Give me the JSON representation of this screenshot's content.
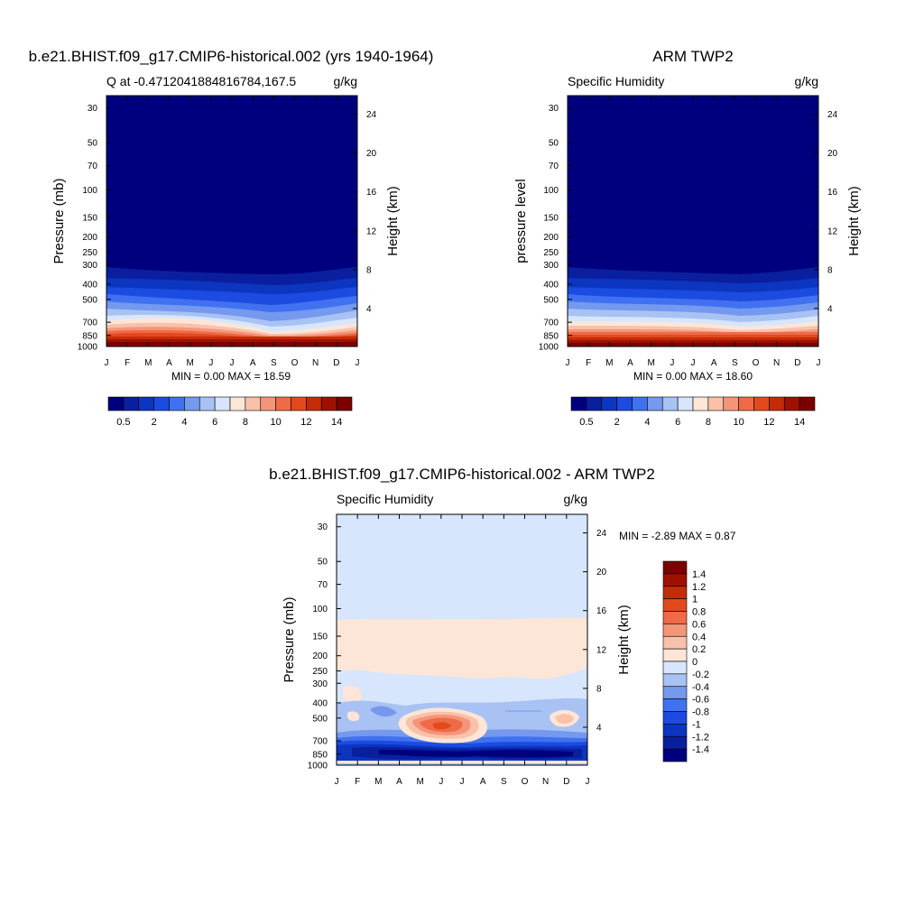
{
  "chart_data": [
    {
      "type": "heatmap",
      "title": "b.e21.BHIST.f09_g17.CMIP6-historical.002 (yrs 1940-1964)",
      "subtitle_left": "Q at -0.4712041884816784,167.5",
      "units": "g/kg",
      "ylabel": "Pressure (mb)",
      "ylabel_right": "Height (km)",
      "x_tick_labels": [
        "J",
        "F",
        "M",
        "A",
        "M",
        "J",
        "J",
        "A",
        "S",
        "O",
        "N",
        "D",
        "J"
      ],
      "y_ticks": [
        30,
        50,
        70,
        100,
        150,
        200,
        250,
        300,
        400,
        500,
        700,
        850,
        1000
      ],
      "y_scale": "log",
      "ylim": [
        1000,
        25
      ],
      "height_ticks_km": [
        24,
        20,
        16,
        12,
        8,
        4
      ],
      "minmax_text": "MIN =   0.00 MAX =   18.59",
      "min": 0.0,
      "max": 18.59,
      "levels": [
        0.5,
        1,
        2,
        3,
        4,
        5,
        6,
        7,
        8,
        9,
        10,
        11,
        12,
        13,
        14
      ],
      "colorbar_labels": [
        "0.5",
        "2",
        "4",
        "6",
        "8",
        "10",
        "12",
        "14"
      ],
      "colorbar_label_levels": [
        0.5,
        2,
        4,
        6,
        8,
        10,
        12,
        14
      ],
      "colorbar_orientation": "horizontal"
    },
    {
      "type": "heatmap",
      "title": "ARM TWP2",
      "subtitle_left": "Specific Humidity",
      "units": "g/kg",
      "ylabel": "pressure level",
      "ylabel_right": "Height (km)",
      "x_tick_labels": [
        "J",
        "F",
        "M",
        "A",
        "M",
        "J",
        "J",
        "A",
        "S",
        "O",
        "N",
        "D",
        "J"
      ],
      "y_ticks": [
        30,
        50,
        70,
        100,
        150,
        200,
        250,
        300,
        400,
        500,
        700,
        850,
        1000
      ],
      "y_scale": "log",
      "ylim": [
        1000,
        25
      ],
      "height_ticks_km": [
        24,
        20,
        16,
        12,
        8,
        4
      ],
      "minmax_text": "MIN =   0.00 MAX =   18.60",
      "min": 0.0,
      "max": 18.6,
      "levels": [
        0.5,
        1,
        2,
        3,
        4,
        5,
        6,
        7,
        8,
        9,
        10,
        11,
        12,
        13,
        14
      ],
      "colorbar_labels": [
        "0.5",
        "2",
        "4",
        "6",
        "8",
        "10",
        "12",
        "14"
      ],
      "colorbar_label_levels": [
        0.5,
        2,
        4,
        6,
        8,
        10,
        12,
        14
      ],
      "colorbar_orientation": "horizontal"
    },
    {
      "type": "heatmap",
      "title": "b.e21.BHIST.f09_g17.CMIP6-historical.002 - ARM TWP2",
      "subtitle_left": "Specific Humidity",
      "units": "g/kg",
      "ylabel": "Pressure (mb)",
      "ylabel_right": "Height (km)",
      "x_tick_labels": [
        "J",
        "F",
        "M",
        "A",
        "M",
        "J",
        "J",
        "A",
        "S",
        "O",
        "N",
        "D",
        "J"
      ],
      "y_ticks": [
        30,
        50,
        70,
        100,
        150,
        200,
        250,
        300,
        400,
        500,
        700,
        850,
        1000
      ],
      "y_scale": "log",
      "ylim": [
        1000,
        25
      ],
      "height_ticks_km": [
        24,
        20,
        16,
        12,
        8,
        4
      ],
      "minmax_text": "MIN =  -2.89 MAX =   0.87",
      "min": -2.89,
      "max": 0.87,
      "levels": [
        -1.4,
        -1.2,
        -1,
        -0.8,
        -0.6,
        -0.4,
        -0.2,
        0,
        0.2,
        0.4,
        0.6,
        0.8,
        1,
        1.2,
        1.4
      ],
      "colorbar_labels": [
        "1.4",
        "1.2",
        "1",
        "0.8",
        "0.6",
        "0.4",
        "0.2",
        "0",
        "-0.2",
        "-0.4",
        "-0.6",
        "-0.8",
        "-1",
        "-1.2",
        "-1.4"
      ],
      "colorbar_label_levels": [
        1.4,
        1.2,
        1,
        0.8,
        0.6,
        0.4,
        0.2,
        0,
        -0.2,
        -0.4,
        -0.6,
        -0.8,
        -1,
        -1.2,
        -1.4
      ],
      "colorbar_orientation": "vertical"
    }
  ],
  "colors": {
    "absolute_colormap": [
      "#00007f",
      "#0a1f9e",
      "#0c35c0",
      "#1b4be0",
      "#4071f0",
      "#7499ee",
      "#a9c2f4",
      "#d7e6fc",
      "#fde6d7",
      "#f9c1a9",
      "#f4957a",
      "#ef6a47",
      "#e24a1e",
      "#c42b07",
      "#9e1100",
      "#7d0000"
    ],
    "diff_colormap": [
      "#00007f",
      "#0a1f9e",
      "#0c35c0",
      "#1b4be0",
      "#4071f0",
      "#7499ee",
      "#a9c2f4",
      "#d7e6fc",
      "#fde6d7",
      "#f9c1a9",
      "#f4957a",
      "#ef6a47",
      "#e24a1e",
      "#c42b07",
      "#9e1100",
      "#7d0000"
    ]
  }
}
